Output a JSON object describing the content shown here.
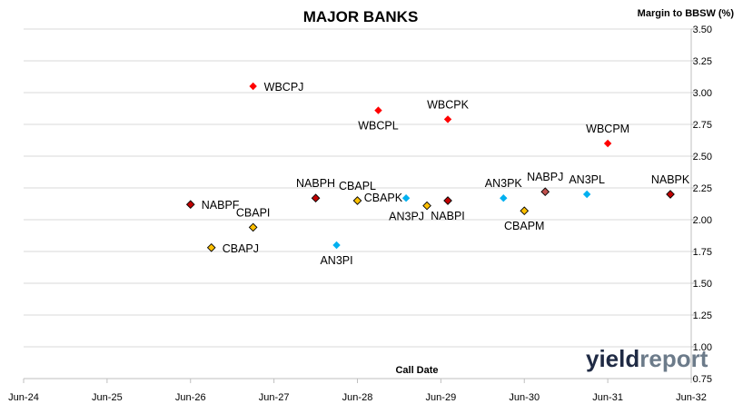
{
  "chart_data": {
    "type": "scatter",
    "title": "MAJOR BANKS",
    "xlabel": "Call Date",
    "ylabel": "Margin to BBSW (%)",
    "ylim": [
      0.75,
      3.5
    ],
    "y_ticks": [
      "0.75",
      "1.00",
      "1.25",
      "1.50",
      "1.75",
      "2.00",
      "2.25",
      "2.50",
      "2.75",
      "3.00",
      "3.25",
      "3.50"
    ],
    "xlim": [
      "2024-06",
      "2032-06"
    ],
    "x_ticks": [
      "Jun-24",
      "Jun-25",
      "Jun-26",
      "Jun-27",
      "Jun-28",
      "Jun-29",
      "Jun-30",
      "Jun-31",
      "Jun-32"
    ],
    "grid": "horizontal",
    "legend": "none",
    "colors": {
      "WBC": "#ff0000",
      "NAB": "#c00000",
      "CBA": "#ffc000",
      "ANZ": "#00b0f0",
      "NAB_alt": "#c0504d"
    },
    "points": [
      {
        "label": "WBCPJ",
        "x": "2027-03",
        "y": 3.05,
        "issuer": "WBC",
        "label_pos": "right"
      },
      {
        "label": "WBCPL",
        "x": "2028-09",
        "y": 2.86,
        "issuer": "WBC",
        "label_pos": "below"
      },
      {
        "label": "WBCPK",
        "x": "2029-07",
        "y": 2.79,
        "issuer": "WBC",
        "label_pos": "above"
      },
      {
        "label": "WBCPM",
        "x": "2031-06",
        "y": 2.6,
        "issuer": "WBC",
        "label_pos": "above"
      },
      {
        "label": "NABPF",
        "x": "2026-06",
        "y": 2.12,
        "issuer": "NAB",
        "label_pos": "right"
      },
      {
        "label": "NABPH",
        "x": "2027-12",
        "y": 2.17,
        "issuer": "NAB",
        "label_pos": "above"
      },
      {
        "label": "NABPI",
        "x": "2029-07",
        "y": 2.15,
        "issuer": "NAB",
        "label_pos": "below"
      },
      {
        "label": "NABPJ",
        "x": "2030-09",
        "y": 2.22,
        "issuer": "NAB_alt",
        "label_pos": "above"
      },
      {
        "label": "NABPK",
        "x": "2032-03",
        "y": 2.2,
        "issuer": "NAB",
        "label_pos": "above"
      },
      {
        "label": "CBAPJ",
        "x": "2026-09",
        "y": 1.78,
        "issuer": "CBA",
        "label_pos": "right"
      },
      {
        "label": "CBAPI",
        "x": "2027-03",
        "y": 1.94,
        "issuer": "CBA",
        "label_pos": "above"
      },
      {
        "label": "CBAPL",
        "x": "2028-06",
        "y": 2.15,
        "issuer": "CBA",
        "label_pos": "above"
      },
      {
        "label": "CBAPM",
        "x": "2030-06",
        "y": 2.07,
        "issuer": "CBA",
        "label_pos": "below"
      },
      {
        "label": "AN3PJ",
        "x": "2029-04",
        "y": 2.11,
        "issuer": "CBA",
        "label_pos": "belowleft"
      },
      {
        "label": "CBAPK",
        "x": "2029-01",
        "y": 2.17,
        "issuer": "ANZ",
        "label_pos": "left"
      },
      {
        "label": "AN3PI",
        "x": "2028-03",
        "y": 1.8,
        "issuer": "ANZ",
        "label_pos": "below"
      },
      {
        "label": "AN3PK",
        "x": "2030-03",
        "y": 2.17,
        "issuer": "ANZ",
        "label_pos": "above"
      },
      {
        "label": "AN3PL",
        "x": "2031-03",
        "y": 2.2,
        "issuer": "ANZ",
        "label_pos": "above"
      }
    ]
  },
  "branding": {
    "logo_part1": "yield",
    "logo_part2": "report"
  }
}
